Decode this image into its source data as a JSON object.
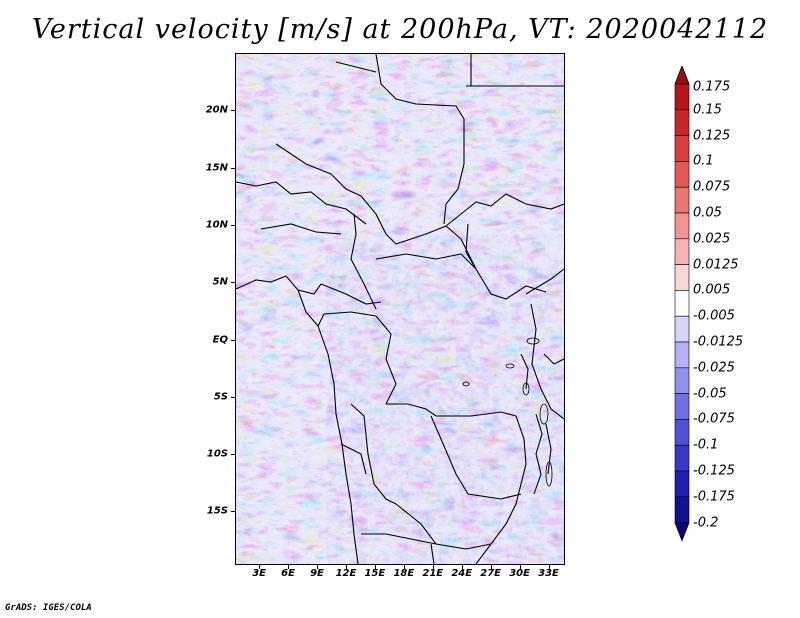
{
  "title": "Vertical velocity [m/s] at 200hPa, VT: 2020042112",
  "credit": "GrADS: IGES/COLA",
  "map": {
    "lat_labels": [
      "20N",
      "15N",
      "10N",
      "5N",
      "EQ",
      "5S",
      "10S",
      "15S"
    ],
    "lat_values": [
      20,
      15,
      10,
      5,
      0,
      -5,
      -10,
      -15
    ],
    "lon_labels": [
      "3E",
      "6E",
      "9E",
      "12E",
      "15E",
      "18E",
      "21E",
      "24E",
      "27E",
      "30E",
      "33E"
    ],
    "lon_values": [
      3,
      6,
      9,
      12,
      15,
      18,
      21,
      24,
      27,
      30,
      33
    ],
    "lon_range": [
      0.5,
      34.5
    ],
    "lat_range": [
      -19.5,
      25
    ]
  },
  "colorbar": {
    "levels": [
      "0.175",
      "0.15",
      "0.125",
      "0.1",
      "0.075",
      "0.05",
      "0.025",
      "0.0125",
      "0.005",
      "-0.005",
      "-0.0125",
      "-0.025",
      "-0.05",
      "-0.075",
      "-0.1",
      "-0.125",
      "-0.175",
      "-0.2"
    ],
    "colors": [
      "#9a0c14",
      "#b8141c",
      "#c8262b",
      "#d84040",
      "#e25a58",
      "#ea7674",
      "#f29292",
      "#f7b4b4",
      "#fbd6d6",
      "#ffffff",
      "#d6d6fb",
      "#b2b2f4",
      "#9090ee",
      "#7070e4",
      "#5252d6",
      "#3838c6",
      "#2020ae",
      "#12128e",
      "#08086e"
    ]
  },
  "chart_data": {
    "type": "heatmap",
    "title": "Vertical velocity [m/s] at 200hPa, VT: 2020042112",
    "variable": "Vertical velocity",
    "units": "m/s",
    "level": "200hPa",
    "valid_time": "2020042112",
    "x_ticks": [
      "3E",
      "6E",
      "9E",
      "12E",
      "15E",
      "18E",
      "21E",
      "24E",
      "27E",
      "30E",
      "33E"
    ],
    "y_ticks": [
      "20N",
      "15N",
      "10N",
      "5N",
      "EQ",
      "5S",
      "10S",
      "15S"
    ],
    "colorbar_levels": [
      0.175,
      0.15,
      0.125,
      0.1,
      0.075,
      0.05,
      0.025,
      0.0125,
      0.005,
      -0.005,
      -0.0125,
      -0.025,
      -0.05,
      -0.075,
      -0.1,
      -0.125,
      -0.175,
      -0.2
    ]
  }
}
